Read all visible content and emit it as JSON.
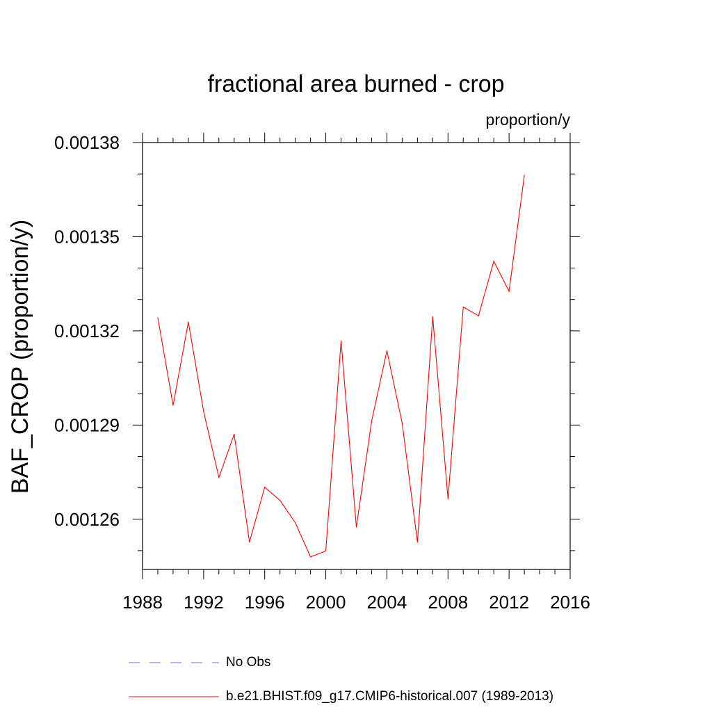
{
  "chart_data": {
    "type": "line",
    "title": "fractional area burned - crop",
    "units_label": "proportion/y",
    "xlabel": "",
    "ylabel": "BAF_CROP  (proportion/y)",
    "xlim": [
      1988,
      2016
    ],
    "ylim": [
      0.001244,
      0.00138
    ],
    "x_ticks": [
      1988,
      1992,
      1996,
      2000,
      2004,
      2008,
      2012,
      2016
    ],
    "x_tick_labels": [
      "1988",
      "1992",
      "1996",
      "2000",
      "2004",
      "2008",
      "2012",
      "2016"
    ],
    "y_ticks": [
      0.00126,
      0.00129,
      0.00132,
      0.00135,
      0.00138
    ],
    "y_tick_labels": [
      "0.00126",
      "0.00129",
      "0.00132",
      "0.00135",
      "0.00138"
    ],
    "grid": false,
    "legend_position": "bottom",
    "series": [
      {
        "name": "No Obs",
        "color": "#7b6fd6",
        "style": "dashed",
        "x": [],
        "values": []
      },
      {
        "name": "b.e21.BHIST.f09_g17.CMIP6-historical.007 (1989-2013)",
        "color": "#ff0000",
        "style": "solid",
        "x": [
          1989,
          1990,
          1991,
          1992,
          1993,
          1994,
          1995,
          1996,
          1997,
          1998,
          1999,
          2000,
          2001,
          2002,
          2003,
          2004,
          2005,
          2006,
          2007,
          2008,
          2009,
          2010,
          2011,
          2012,
          2013
        ],
        "values": [
          0.0013242,
          0.0012963,
          0.0013228,
          0.0012943,
          0.0012733,
          0.0012871,
          0.0012527,
          0.0012702,
          0.001266,
          0.0012589,
          0.001248,
          0.0012499,
          0.0013168,
          0.0012575,
          0.0012912,
          0.0013137,
          0.0012906,
          0.0012527,
          0.0013245,
          0.0012665,
          0.0013276,
          0.0013248,
          0.0013422,
          0.0013326,
          0.0013696
        ]
      }
    ]
  }
}
